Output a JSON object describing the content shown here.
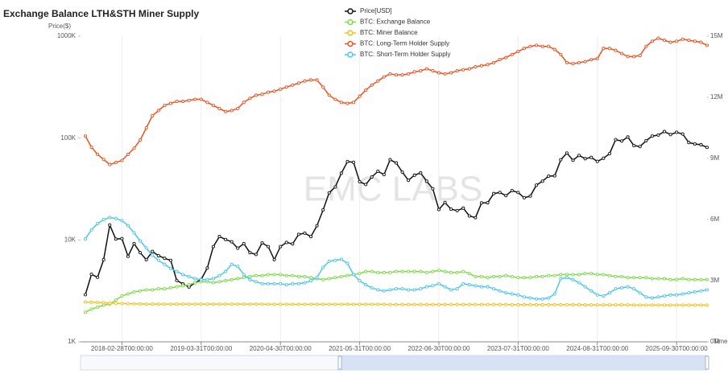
{
  "chart_data": {
    "type": "line",
    "title": "Exchange Balance LTH&STH Miner Supply",
    "y_label": "Price($)",
    "x_label": "Time",
    "watermark": "EMC LABS",
    "ylog": true,
    "grid": true,
    "legend": "top",
    "ylim": [
      1000,
      1000000
    ],
    "yticks": [
      {
        "value": 1000,
        "label": "1K"
      },
      {
        "value": 10000,
        "label": "10K"
      },
      {
        "value": 100000,
        "label": "100K"
      },
      {
        "value": 1000000,
        "label": "1000K"
      }
    ],
    "y2lim": [
      0,
      15
    ],
    "y2ticks": [
      {
        "value": 0,
        "label": "0M"
      },
      {
        "value": 3,
        "label": "3M"
      },
      {
        "value": 6,
        "label": "6M"
      },
      {
        "value": 9,
        "label": "9M"
      },
      {
        "value": 12,
        "label": "12M"
      },
      {
        "value": 15,
        "label": "15M"
      }
    ],
    "categories": [
      null,
      null,
      null,
      null,
      null,
      null,
      "2018-02-28T00:00:00",
      null,
      null,
      null,
      null,
      null,
      null,
      null,
      null,
      null,
      null,
      null,
      null,
      "2019-03-31T00:00:00",
      null,
      null,
      null,
      null,
      null,
      null,
      null,
      null,
      null,
      null,
      null,
      null,
      "2020-04-30T00:00:00",
      null,
      null,
      null,
      null,
      null,
      null,
      null,
      null,
      null,
      null,
      null,
      null,
      "2021-05-31T00:00:00",
      null,
      null,
      null,
      null,
      null,
      null,
      null,
      null,
      null,
      null,
      null,
      null,
      "2022-06-30T00:00:00",
      null,
      null,
      null,
      null,
      null,
      null,
      null,
      null,
      null,
      null,
      null,
      null,
      "2023-07-31T00:00:00",
      null,
      null,
      null,
      null,
      null,
      null,
      null,
      null,
      null,
      null,
      null,
      null,
      "2024-08-31T00:00:00",
      null,
      null,
      null,
      null,
      null,
      null,
      null,
      null,
      null,
      null,
      null,
      null,
      "2025-09-30T00:00:00",
      null,
      null,
      null,
      null,
      null
    ],
    "series": [
      {
        "name": "Price[USD]",
        "color": "#111111",
        "axis": "y",
        "values": [
          2900,
          4600,
          4300,
          6400,
          14000,
          10200,
          10300,
          6900,
          9200,
          7500,
          6400,
          7700,
          7000,
          6600,
          6300,
          4000,
          3700,
          3450,
          3800,
          4100,
          5300,
          8600,
          10800,
          10100,
          9600,
          8300,
          9200,
          7500,
          7200,
          9350,
          8600,
          6400,
          8600,
          9450,
          9140,
          11350,
          11650,
          10780,
          13800,
          19700,
          29000,
          33100,
          45200,
          58800,
          57800,
          37300,
          35000,
          41500,
          47100,
          43800,
          61300,
          57000,
          46300,
          38500,
          43200,
          45500,
          37700,
          31800,
          19900,
          23300,
          20050,
          19400,
          20500,
          17200,
          16550,
          23100,
          23150,
          28500,
          29250,
          27200,
          30500,
          29200,
          25950,
          26970,
          34500,
          37700,
          42300,
          42600,
          61200,
          71300,
          60600,
          67500,
          62700,
          64600,
          59000,
          63300,
          70200,
          96400,
          93400,
          102400,
          84400,
          82500,
          94200,
          104600,
          107100,
          115800,
          108200,
          114000,
          109600,
          90400,
          87500,
          86000,
          81000
        ]
      },
      {
        "name": "BTC: Exchange Balance",
        "color": "#7ddc4a",
        "axis": "y2",
        "values": [
          1.45,
          1.6,
          1.7,
          1.8,
          1.85,
          2.05,
          2.25,
          2.35,
          2.45,
          2.5,
          2.55,
          2.55,
          2.6,
          2.6,
          2.65,
          2.7,
          2.75,
          2.8,
          2.9,
          2.95,
          2.95,
          2.9,
          2.95,
          3.0,
          3.05,
          3.1,
          3.15,
          3.2,
          3.25,
          3.25,
          3.3,
          3.3,
          3.3,
          3.25,
          3.25,
          3.2,
          3.2,
          3.15,
          3.1,
          3.05,
          3.1,
          3.15,
          3.2,
          3.25,
          3.3,
          3.35,
          3.45,
          3.45,
          3.4,
          3.4,
          3.4,
          3.45,
          3.45,
          3.45,
          3.45,
          3.45,
          3.4,
          3.45,
          3.5,
          3.45,
          3.4,
          3.4,
          3.45,
          3.35,
          3.2,
          3.2,
          3.15,
          3.2,
          3.2,
          3.25,
          3.2,
          3.15,
          3.15,
          3.15,
          3.2,
          3.2,
          3.25,
          3.25,
          3.3,
          3.3,
          3.3,
          3.3,
          3.35,
          3.35,
          3.3,
          3.3,
          3.25,
          3.2,
          3.2,
          3.15,
          3.15,
          3.15,
          3.15,
          3.1,
          3.1,
          3.1,
          3.05,
          3.05,
          3.1,
          3.05,
          3.05,
          3.05,
          3.05
        ]
      },
      {
        "name": "BTC: Miner Balance",
        "color": "#f2c21b",
        "axis": "y2",
        "values": [
          1.95,
          1.94,
          1.93,
          1.92,
          1.9,
          1.89,
          1.88,
          1.87,
          1.86,
          1.86,
          1.85,
          1.85,
          1.85,
          1.85,
          1.85,
          1.85,
          1.85,
          1.85,
          1.85,
          1.85,
          1.85,
          1.85,
          1.85,
          1.85,
          1.85,
          1.85,
          1.85,
          1.85,
          1.85,
          1.85,
          1.84,
          1.84,
          1.84,
          1.84,
          1.84,
          1.84,
          1.84,
          1.84,
          1.84,
          1.84,
          1.84,
          1.84,
          1.84,
          1.84,
          1.84,
          1.84,
          1.84,
          1.84,
          1.84,
          1.84,
          1.83,
          1.83,
          1.83,
          1.83,
          1.83,
          1.83,
          1.83,
          1.83,
          1.83,
          1.83,
          1.83,
          1.83,
          1.83,
          1.83,
          1.83,
          1.83,
          1.83,
          1.83,
          1.83,
          1.83,
          1.82,
          1.82,
          1.82,
          1.82,
          1.82,
          1.82,
          1.82,
          1.82,
          1.82,
          1.82,
          1.82,
          1.82,
          1.81,
          1.81,
          1.81,
          1.81,
          1.81,
          1.81,
          1.81,
          1.81,
          1.8,
          1.8,
          1.8,
          1.8,
          1.8,
          1.8,
          1.8,
          1.8,
          1.8,
          1.8,
          1.8,
          1.8,
          1.8
        ]
      },
      {
        "name": "BTC: Long-Term Holder Supply",
        "color": "#f0501e",
        "axis": "y2",
        "values": [
          10.1,
          9.55,
          9.2,
          8.95,
          8.7,
          8.8,
          8.9,
          9.2,
          9.5,
          9.9,
          10.5,
          11.1,
          11.35,
          11.6,
          11.7,
          11.8,
          11.8,
          11.85,
          11.9,
          11.9,
          11.75,
          11.6,
          11.45,
          11.3,
          11.35,
          11.45,
          11.75,
          11.95,
          12.1,
          12.15,
          12.25,
          12.3,
          12.4,
          12.5,
          12.6,
          12.7,
          12.8,
          12.85,
          12.85,
          12.5,
          12.1,
          11.9,
          11.75,
          11.7,
          11.75,
          12.05,
          12.35,
          12.6,
          12.8,
          13.0,
          13.15,
          13.1,
          13.1,
          13.15,
          13.25,
          13.3,
          13.4,
          13.3,
          13.2,
          13.15,
          13.2,
          13.3,
          13.35,
          13.4,
          13.5,
          13.55,
          13.6,
          13.7,
          13.85,
          13.95,
          14.1,
          14.25,
          14.4,
          14.5,
          14.55,
          14.5,
          14.5,
          14.35,
          14.1,
          13.7,
          13.65,
          13.7,
          13.75,
          13.85,
          13.9,
          14.4,
          14.4,
          14.3,
          14.15,
          14.0,
          14.0,
          14.05,
          14.5,
          14.75,
          14.9,
          14.8,
          14.7,
          14.75,
          14.85,
          14.8,
          14.75,
          14.7,
          14.55
        ]
      },
      {
        "name": "BTC: Short-Term Holder Supply",
        "color": "#4cc6ee",
        "axis": "y2",
        "values": [
          5.05,
          5.5,
          5.8,
          6.0,
          6.1,
          6.05,
          5.95,
          5.7,
          5.35,
          4.95,
          4.6,
          4.25,
          4.0,
          3.8,
          3.6,
          3.45,
          3.3,
          3.2,
          3.1,
          3.05,
          3.05,
          3.1,
          3.25,
          3.45,
          3.8,
          3.7,
          3.3,
          3.05,
          2.95,
          2.85,
          2.85,
          2.85,
          2.85,
          2.8,
          2.85,
          2.85,
          2.9,
          3.0,
          3.15,
          3.65,
          3.95,
          4.0,
          4.05,
          3.85,
          3.3,
          3.0,
          2.8,
          2.65,
          2.55,
          2.5,
          2.55,
          2.6,
          2.6,
          2.55,
          2.55,
          2.6,
          2.7,
          2.75,
          2.85,
          2.7,
          2.55,
          2.6,
          2.85,
          2.8,
          2.75,
          2.7,
          2.7,
          2.6,
          2.5,
          2.4,
          2.35,
          2.3,
          2.2,
          2.15,
          2.1,
          2.1,
          2.15,
          2.35,
          3.1,
          3.15,
          3.05,
          2.9,
          2.7,
          2.5,
          2.3,
          2.25,
          2.4,
          2.6,
          2.65,
          2.7,
          2.6,
          2.4,
          2.2,
          2.15,
          2.2,
          2.25,
          2.3,
          2.3,
          2.35,
          2.4,
          2.45,
          2.5,
          2.55
        ]
      }
    ]
  }
}
